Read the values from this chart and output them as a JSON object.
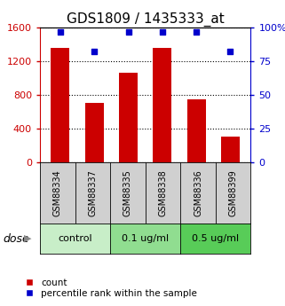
{
  "title": "GDS1809 / 1435333_at",
  "categories": [
    "GSM88334",
    "GSM88337",
    "GSM88335",
    "GSM88338",
    "GSM88336",
    "GSM88399"
  ],
  "bar_values": [
    1360,
    700,
    1060,
    1360,
    750,
    300
  ],
  "dot_values": [
    97,
    82,
    97,
    97,
    97,
    82
  ],
  "bar_color": "#cc0000",
  "dot_color": "#0000cc",
  "ylim_left": [
    0,
    1600
  ],
  "ylim_right": [
    0,
    100
  ],
  "yticks_left": [
    0,
    400,
    800,
    1200,
    1600
  ],
  "yticks_right": [
    0,
    25,
    50,
    75,
    100
  ],
  "ytick_labels_right": [
    "0",
    "25",
    "50",
    "75",
    "100%"
  ],
  "groups": [
    {
      "label": "control",
      "n": 2,
      "color": "#c8eec8"
    },
    {
      "label": "0.1 ug/ml",
      "n": 2,
      "color": "#90dd90"
    },
    {
      "label": "0.5 ug/ml",
      "n": 2,
      "color": "#58cc58"
    }
  ],
  "dose_label": "dose",
  "legend_bar_label": "count",
  "legend_dot_label": "percentile rank within the sample",
  "left_tick_color": "#cc0000",
  "right_tick_color": "#0000cc",
  "title_fontsize": 11,
  "bar_width": 0.55,
  "sample_box_color": "#d0d0d0"
}
